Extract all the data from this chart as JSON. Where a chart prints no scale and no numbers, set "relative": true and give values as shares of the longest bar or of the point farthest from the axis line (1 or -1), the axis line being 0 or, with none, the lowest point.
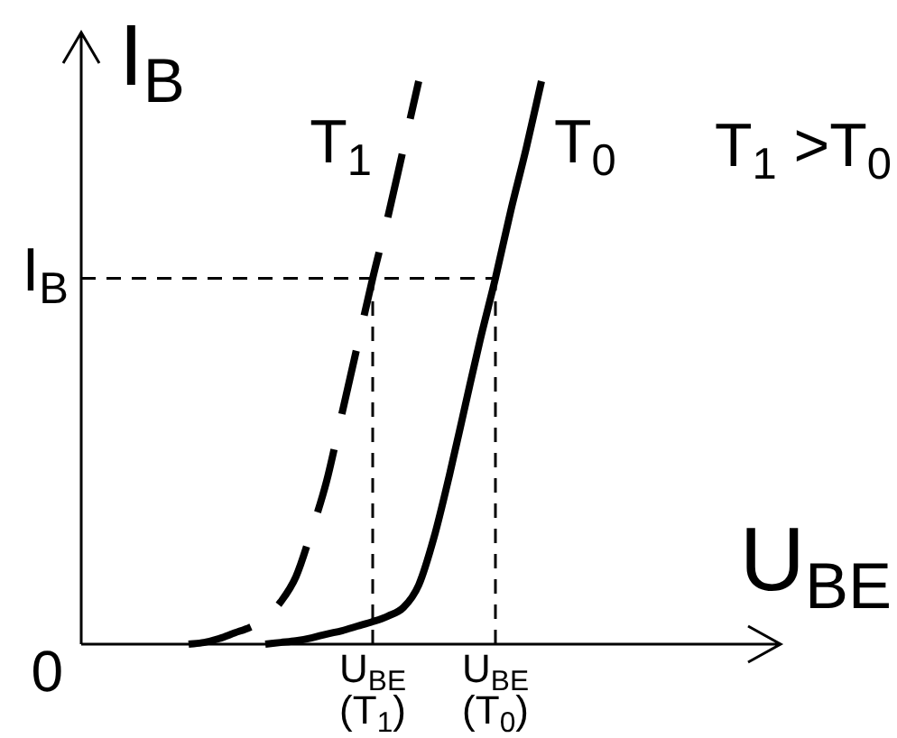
{
  "chart_data": {
    "type": "line",
    "xlabel": "U$_{BE}$",
    "ylabel": "I$_{B}$",
    "relative": true,
    "tick_labels": "x",
    "marker": "none",
    "categories": [
      null,
      null,
      null,
      null,
      null,
      null,
      null,
      null,
      null,
      null,
      null,
      null,
      null,
      null,
      null,
      null,
      null,
      null,
      null,
      "U$_{BE}$(T$_{1}$)",
      null,
      null,
      null,
      null,
      null,
      null,
      null,
      "U$_{BE}$(T$_{0}$)",
      null,
      null,
      null,
      null,
      null,
      null,
      null,
      null,
      null,
      null,
      null,
      null,
      null,
      null,
      null,
      null,
      null,
      null
    ],
    "series": [
      {
        "name": "T$_{1}$",
        "color": "#000000",
        "line_style": "dashed",
        "values": [
          null,
          null,
          null,
          null,
          null,
          null,
          null,
          0,
          0.003,
          0.01,
          0.02,
          0.03,
          0.045,
          0.075,
          0.12,
          0.2,
          0.29,
          0.41,
          0.53,
          0.65,
          0.76,
          0.88,
          1,
          null,
          null,
          null,
          null,
          null,
          null,
          null,
          null,
          null,
          null,
          null,
          null,
          null,
          null,
          null,
          null,
          null,
          null,
          null,
          null,
          null,
          null,
          null
        ]
      },
      {
        "name": "T$_{0}$",
        "color": "#000000",
        "line_style": "solid",
        "values": [
          null,
          null,
          null,
          null,
          null,
          null,
          null,
          null,
          null,
          null,
          null,
          null,
          0,
          0.003,
          0.006,
          0.011,
          0.018,
          0.024,
          0.032,
          0.04,
          0.05,
          0.065,
          0.105,
          0.19,
          0.3,
          0.42,
          0.54,
          0.65,
          0.77,
          0.88,
          1,
          null,
          null,
          null,
          null,
          null,
          null,
          null,
          null,
          null,
          null,
          null,
          null,
          null,
          null,
          null
        ]
      }
    ],
    "ref_lines": [
      {
        "axis": "y",
        "value": 0.65,
        "label": "I$_{B}$",
        "line_style": "dashed",
        "color": "#000000"
      },
      {
        "axis": "x",
        "value": "U$_{BE}$(T$_{1}$)",
        "line_style": "dashed",
        "color": "#000000"
      },
      {
        "axis": "x",
        "value": "U$_{BE}$(T$_{0}$)",
        "line_style": "dashed",
        "color": "#000000"
      }
    ],
    "annotations": [
      "T$_{1}$ >T$_{0}$",
      "0"
    ]
  }
}
